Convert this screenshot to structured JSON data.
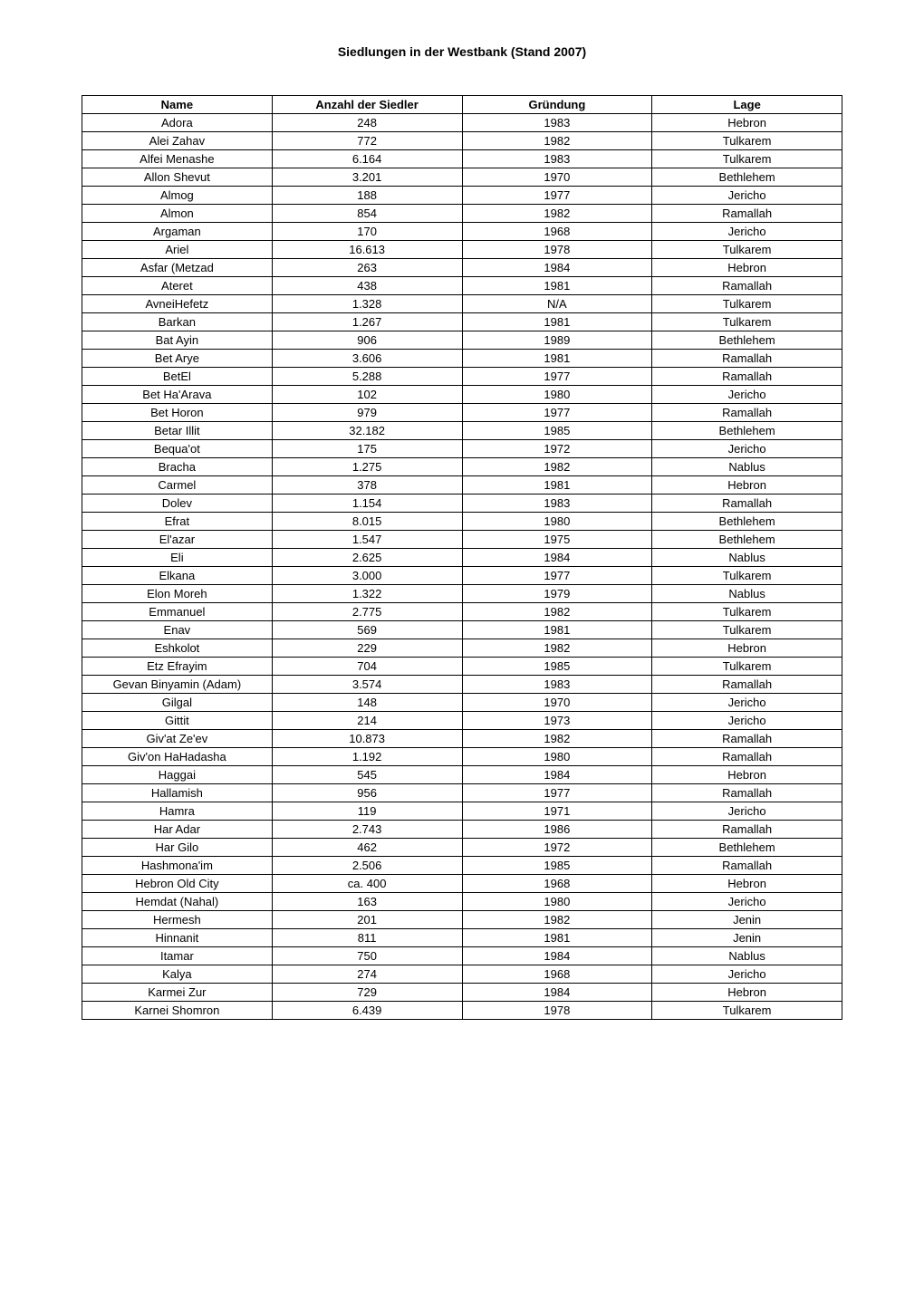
{
  "title": "Siedlungen in der Westbank (Stand 2007)",
  "table": {
    "columns": [
      "Name",
      "Anzahl der Siedler",
      "Gründung",
      "Lage"
    ],
    "rows": [
      [
        "Adora",
        "248",
        "1983",
        "Hebron"
      ],
      [
        "Alei Zahav",
        "772",
        "1982",
        "Tulkarem"
      ],
      [
        "Alfei Menashe",
        "6.164",
        "1983",
        "Tulkarem"
      ],
      [
        "Allon Shevut",
        "3.201",
        "1970",
        "Bethlehem"
      ],
      [
        "Almog",
        "188",
        "1977",
        "Jericho"
      ],
      [
        "Almon",
        "854",
        "1982",
        "Ramallah"
      ],
      [
        "Argaman",
        "170",
        "1968",
        "Jericho"
      ],
      [
        "Ariel",
        "16.613",
        "1978",
        "Tulkarem"
      ],
      [
        "Asfar (Metzad",
        "263",
        "1984",
        "Hebron"
      ],
      [
        "Ateret",
        "438",
        "1981",
        "Ramallah"
      ],
      [
        "AvneiHefetz",
        "1.328",
        "N/A",
        "Tulkarem"
      ],
      [
        "Barkan",
        "1.267",
        "1981",
        "Tulkarem"
      ],
      [
        "Bat Ayin",
        "906",
        "1989",
        "Bethlehem"
      ],
      [
        "Bet Arye",
        "3.606",
        "1981",
        "Ramallah"
      ],
      [
        "BetEl",
        "5.288",
        "1977",
        "Ramallah"
      ],
      [
        "Bet Ha'Arava",
        "102",
        "1980",
        "Jericho"
      ],
      [
        "Bet Horon",
        "979",
        "1977",
        "Ramallah"
      ],
      [
        "Betar Illit",
        "32.182",
        "1985",
        "Bethlehem"
      ],
      [
        "Bequa'ot",
        "175",
        "1972",
        "Jericho"
      ],
      [
        "Bracha",
        "1.275",
        "1982",
        "Nablus"
      ],
      [
        "Carmel",
        "378",
        "1981",
        "Hebron"
      ],
      [
        "Dolev",
        "1.154",
        "1983",
        "Ramallah"
      ],
      [
        "Efrat",
        "8.015",
        "1980",
        "Bethlehem"
      ],
      [
        "El'azar",
        "1.547",
        "1975",
        "Bethlehem"
      ],
      [
        "Eli",
        "2.625",
        "1984",
        "Nablus"
      ],
      [
        "Elkana",
        "3.000",
        "1977",
        "Tulkarem"
      ],
      [
        "Elon Moreh",
        "1.322",
        "1979",
        "Nablus"
      ],
      [
        "Emmanuel",
        "2.775",
        "1982",
        "Tulkarem"
      ],
      [
        "Enav",
        "569",
        "1981",
        "Tulkarem"
      ],
      [
        "Eshkolot",
        "229",
        "1982",
        "Hebron"
      ],
      [
        "Etz Efrayim",
        "704",
        "1985",
        "Tulkarem"
      ],
      [
        "Gevan Binyamin (Adam)",
        "3.574",
        "1983",
        "Ramallah"
      ],
      [
        "Gilgal",
        "148",
        "1970",
        "Jericho"
      ],
      [
        "Gittit",
        "214",
        "1973",
        "Jericho"
      ],
      [
        "Giv'at Ze'ev",
        "10.873",
        "1982",
        "Ramallah"
      ],
      [
        "Giv'on HaHadasha",
        "1.192",
        "1980",
        "Ramallah"
      ],
      [
        "Haggai",
        "545",
        "1984",
        "Hebron"
      ],
      [
        "Hallamish",
        "956",
        "1977",
        "Ramallah"
      ],
      [
        "Hamra",
        "119",
        "1971",
        "Jericho"
      ],
      [
        "Har Adar",
        "2.743",
        "1986",
        "Ramallah"
      ],
      [
        "Har Gilo",
        "462",
        "1972",
        "Bethlehem"
      ],
      [
        "Hashmona'im",
        "2.506",
        "1985",
        "Ramallah"
      ],
      [
        "Hebron Old City",
        "ca. 400",
        "1968",
        "Hebron"
      ],
      [
        "Hemdat (Nahal)",
        "163",
        "1980",
        "Jericho"
      ],
      [
        "Hermesh",
        "201",
        "1982",
        "Jenin"
      ],
      [
        "Hinnanit",
        "811",
        "1981",
        "Jenin"
      ],
      [
        "Itamar",
        "750",
        "1984",
        "Nablus"
      ],
      [
        "Kalya",
        "274",
        "1968",
        "Jericho"
      ],
      [
        "Karmei Zur",
        "729",
        "1984",
        "Hebron"
      ],
      [
        "Karnei Shomron",
        "6.439",
        "1978",
        "Tulkarem"
      ]
    ]
  },
  "styling": {
    "font_family": "Verdana, Arial, sans-serif",
    "title_fontsize": 14,
    "title_fontweight": "bold",
    "cell_fontsize": 13,
    "border_color": "#000000",
    "background_color": "#ffffff",
    "text_color": "#000000",
    "text_align": "center"
  }
}
